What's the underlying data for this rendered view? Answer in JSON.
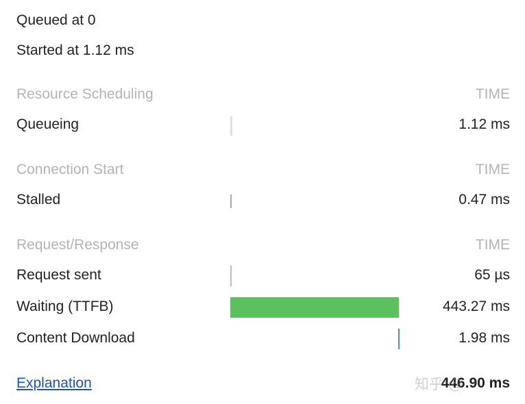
{
  "queued": "Queued at 0",
  "started": "Started at 1.12 ms",
  "sections": [
    {
      "title": "Resource Scheduling",
      "time_label": "TIME"
    },
    {
      "title": "Connection Start",
      "time_label": "TIME"
    },
    {
      "title": "Request/Response",
      "time_label": "TIME"
    }
  ],
  "rows": {
    "queueing": {
      "label": "Queueing",
      "value": "1.12 ms"
    },
    "stalled": {
      "label": "Stalled",
      "value": "0.47 ms"
    },
    "request_sent": {
      "label": "Request sent",
      "value": "65 µs"
    },
    "waiting": {
      "label": "Waiting (TTFB)",
      "value": "443.27 ms"
    },
    "download": {
      "label": "Content Download",
      "value": "1.98 ms"
    }
  },
  "explanation": "Explanation",
  "total": "446.90 ms",
  "watermark": "知乎 @",
  "colors": {
    "waiting": "#5bc15f",
    "download": "#4a8fcf",
    "queue": "#e0e0e0",
    "stalled": "#a8a8a8"
  }
}
